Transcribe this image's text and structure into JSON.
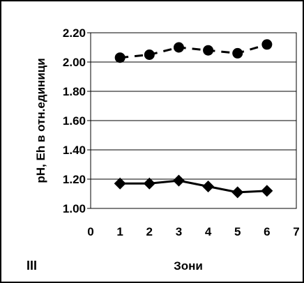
{
  "chart_data": {
    "type": "line",
    "xlabel": "Зони",
    "ylabel": "pH, Eh в отн.единици",
    "panel_label": "III",
    "xlim": [
      0,
      7
    ],
    "ylim": [
      1.0,
      2.2
    ],
    "xticks": [
      "0",
      "1",
      "2",
      "3",
      "4",
      "5",
      "6",
      "7"
    ],
    "yticks": [
      "1.00",
      "1.20",
      "1.40",
      "1.60",
      "1.80",
      "2.00",
      "2.20"
    ],
    "grid": "horizontal",
    "series": [
      {
        "x": [
          1,
          2,
          3,
          4,
          5,
          6
        ],
        "values": [
          2.03,
          2.05,
          2.1,
          2.08,
          2.06,
          2.12
        ],
        "marker": "circle",
        "line": "dashed",
        "color": "#000000"
      },
      {
        "x": [
          1,
          2,
          3,
          4,
          5,
          6
        ],
        "values": [
          1.17,
          1.17,
          1.19,
          1.15,
          1.11,
          1.12
        ],
        "marker": "diamond",
        "line": "solid",
        "color": "#000000"
      }
    ]
  }
}
